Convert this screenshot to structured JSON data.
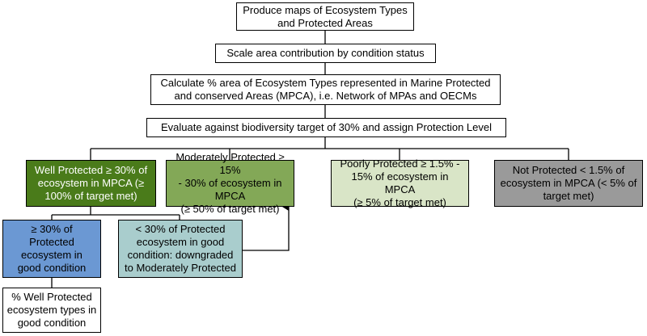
{
  "colors": {
    "well_protected": "#4a7b1a",
    "moderately_protected": "#83a857",
    "poorly_protected": "#d9e5c7",
    "not_protected": "#9a9a9a",
    "good_condition": "#6b98d3",
    "downgraded": "#a9cdcd",
    "connector": "#000000"
  },
  "steps": {
    "produce_maps": [
      "Produce maps of Ecosystem Types",
      "and Protected Areas"
    ],
    "scale_area": [
      "Scale area contribution by condition status"
    ],
    "calculate": [
      "Calculate % area of Ecosystem Types represented in Marine Protected",
      "and conserved Areas (MPCA), i.e. Network of MPAs and OECMs"
    ],
    "evaluate": [
      "Evaluate against biodiversity target of 30% and assign Protection Level"
    ]
  },
  "levels": {
    "well": [
      "Well Protected ≥ 30% of",
      "ecosystem in MPCA (≥",
      "100% of target met)"
    ],
    "moderate": [
      "Moderately Protected ≥ 15%",
      "- 30% of ecosystem in MPCA",
      "(≥ 50% of target met)"
    ],
    "poor": [
      "Poorly Protected ≥ 1.5% -",
      "15% of ecosystem in MPCA",
      "(≥ 5% of target met)"
    ],
    "not": [
      "Not Protected < 1.5% of",
      "ecosystem in MPCA (< 5% of",
      "target met)"
    ]
  },
  "condition": {
    "good": [
      "≥ 30% of",
      "Protected",
      "ecosystem in",
      "good condition"
    ],
    "downgraded": [
      "< 30% of Protected",
      "ecosystem in good",
      "condition: downgraded",
      "to Moderately Protected"
    ]
  },
  "output": [
    "% Well Protected",
    "ecosystem types in",
    "good condition"
  ]
}
